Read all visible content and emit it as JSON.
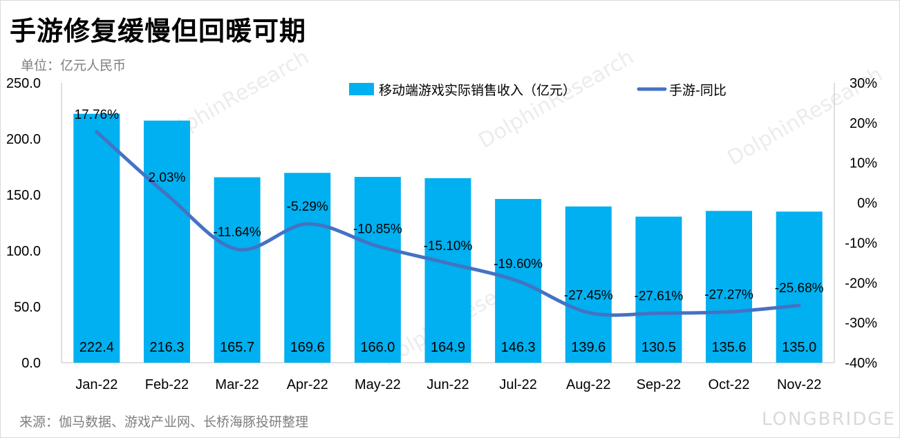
{
  "title": "手游修复缓慢但回暖可期",
  "unit_label": "单位：亿元人民币",
  "source_label": "来源：伽马数据、游戏产业网、长桥海豚投研整理",
  "watermark": {
    "brand": "LONGBRIDGE",
    "research": "DolphinResearch"
  },
  "colors": {
    "bar": "#00b0f0",
    "line": "#4472c4"
  },
  "chart_data": {
    "type": "bar",
    "categories": [
      "Jan-22",
      "Feb-22",
      "Mar-22",
      "Apr-22",
      "May-22",
      "Jun-22",
      "Jul-22",
      "Aug-22",
      "Sep-22",
      "Oct-22",
      "Nov-22"
    ],
    "series": [
      {
        "name": "移动端游戏实际销售收入（亿元）",
        "type": "bar",
        "axis": "left",
        "values": [
          222.4,
          216.3,
          165.7,
          169.6,
          166.0,
          164.9,
          146.3,
          139.6,
          130.5,
          135.6,
          135.0
        ],
        "labels": [
          "222.4",
          "216.3",
          "165.7",
          "169.6",
          "166.0",
          "164.9",
          "146.3",
          "139.6",
          "130.5",
          "135.6",
          "135.0"
        ]
      },
      {
        "name": "手游-同比",
        "type": "line",
        "axis": "right",
        "values": [
          17.76,
          2.03,
          -11.64,
          -5.29,
          -10.85,
          -15.1,
          -19.6,
          -27.45,
          -27.61,
          -27.27,
          -25.68
        ],
        "labels": [
          "17.76%",
          "2.03%",
          "-11.64%",
          "-5.29%",
          "-10.85%",
          "-15.10%",
          "-19.60%",
          "-27.45%",
          "-27.61%",
          "-27.27%",
          "-25.68%"
        ]
      }
    ],
    "y_left": {
      "min": 0,
      "max": 250,
      "ticks": [
        "0.0",
        "50.0",
        "100.0",
        "150.0",
        "200.0",
        "250.0"
      ]
    },
    "y_right": {
      "min": -40,
      "max": 30,
      "ticks": [
        "-40%",
        "-30%",
        "-20%",
        "-10%",
        "0%",
        "10%",
        "20%",
        "30%"
      ]
    },
    "legend_position": "top",
    "grid": false
  }
}
